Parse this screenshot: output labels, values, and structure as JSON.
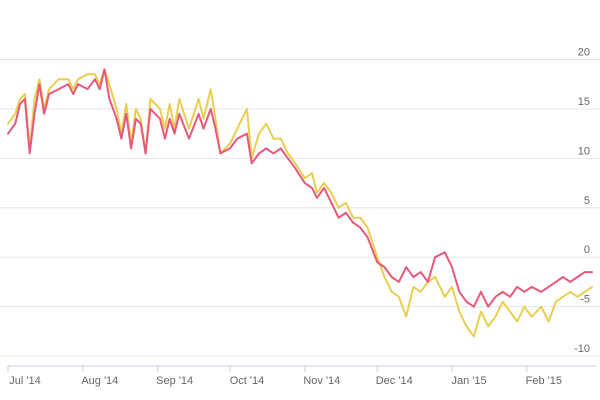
{
  "chart_data": {
    "type": "line",
    "title": "",
    "xlabel": "",
    "ylabel": "",
    "x_start": "2014-07-01",
    "x_end": "2015-02-28",
    "ylim": [
      -11,
      25
    ],
    "y_ticks": [
      20,
      15,
      10,
      5,
      0,
      -5,
      -10
    ],
    "y_tick_labels": [
      "20",
      "15",
      "10",
      "5",
      "0",
      "-5",
      "-10"
    ],
    "x_ticks": [
      {
        "date": "2014-07-01",
        "label": "Jul '14"
      },
      {
        "date": "2014-08-01",
        "label": "Aug '14"
      },
      {
        "date": "2014-09-01",
        "label": "Sep '14"
      },
      {
        "date": "2014-10-01",
        "label": "Oct '14"
      },
      {
        "date": "2014-11-01",
        "label": "Nov '14"
      },
      {
        "date": "2014-12-01",
        "label": "Dec '14"
      },
      {
        "date": "2015-01-01",
        "label": "Jan '15"
      },
      {
        "date": "2015-02-01",
        "label": "Feb '15"
      }
    ],
    "grid": true,
    "legend": "none",
    "series": [
      {
        "color": "#e8587a",
        "points": [
          [
            "2014-07-01",
            12.5
          ],
          [
            "2014-07-04",
            13.5
          ],
          [
            "2014-07-06",
            15.5
          ],
          [
            "2014-07-08",
            16.0
          ],
          [
            "2014-07-10",
            10.5
          ],
          [
            "2014-07-12",
            14.5
          ],
          [
            "2014-07-14",
            17.5
          ],
          [
            "2014-07-16",
            14.5
          ],
          [
            "2014-07-18",
            16.5
          ],
          [
            "2014-07-22",
            17.0
          ],
          [
            "2014-07-26",
            17.5
          ],
          [
            "2014-07-28",
            16.5
          ],
          [
            "2014-07-30",
            17.5
          ],
          [
            "2014-08-03",
            17.0
          ],
          [
            "2014-08-06",
            18.0
          ],
          [
            "2014-08-08",
            17.0
          ],
          [
            "2014-08-10",
            19.0
          ],
          [
            "2014-08-12",
            16.0
          ],
          [
            "2014-08-15",
            14.0
          ],
          [
            "2014-08-17",
            12.0
          ],
          [
            "2014-08-19",
            14.5
          ],
          [
            "2014-08-21",
            11.0
          ],
          [
            "2014-08-23",
            14.0
          ],
          [
            "2014-08-25",
            13.5
          ],
          [
            "2014-08-27",
            10.5
          ],
          [
            "2014-08-29",
            15.0
          ],
          [
            "2014-09-02",
            14.0
          ],
          [
            "2014-09-04",
            12.0
          ],
          [
            "2014-09-06",
            14.0
          ],
          [
            "2014-09-08",
            12.5
          ],
          [
            "2014-09-10",
            14.5
          ],
          [
            "2014-09-14",
            12.0
          ],
          [
            "2014-09-18",
            14.5
          ],
          [
            "2014-09-20",
            13.0
          ],
          [
            "2014-09-23",
            15.0
          ],
          [
            "2014-09-25",
            13.0
          ],
          [
            "2014-09-27",
            10.5
          ],
          [
            "2014-10-01",
            11.0
          ],
          [
            "2014-10-04",
            12.0
          ],
          [
            "2014-10-08",
            12.5
          ],
          [
            "2014-10-10",
            9.5
          ],
          [
            "2014-10-13",
            10.5
          ],
          [
            "2014-10-16",
            11.0
          ],
          [
            "2014-10-19",
            10.5
          ],
          [
            "2014-10-22",
            11.0
          ],
          [
            "2014-10-25",
            10.0
          ],
          [
            "2014-10-28",
            9.0
          ],
          [
            "2014-11-01",
            7.5
          ],
          [
            "2014-11-04",
            7.0
          ],
          [
            "2014-11-06",
            6.0
          ],
          [
            "2014-11-09",
            7.0
          ],
          [
            "2014-11-12",
            5.5
          ],
          [
            "2014-11-15",
            4.0
          ],
          [
            "2014-11-18",
            4.5
          ],
          [
            "2014-11-21",
            3.5
          ],
          [
            "2014-11-24",
            3.0
          ],
          [
            "2014-11-27",
            2.0
          ],
          [
            "2014-12-01",
            -0.5
          ],
          [
            "2014-12-04",
            -1.0
          ],
          [
            "2014-12-07",
            -2.0
          ],
          [
            "2014-12-10",
            -2.5
          ],
          [
            "2014-12-13",
            -1.0
          ],
          [
            "2014-12-16",
            -2.0
          ],
          [
            "2014-12-19",
            -1.5
          ],
          [
            "2014-12-22",
            -2.5
          ],
          [
            "2014-12-25",
            0.0
          ],
          [
            "2014-12-29",
            0.5
          ],
          [
            "2015-01-01",
            -1.0
          ],
          [
            "2015-01-04",
            -3.5
          ],
          [
            "2015-01-07",
            -4.5
          ],
          [
            "2015-01-10",
            -5.0
          ],
          [
            "2015-01-13",
            -3.5
          ],
          [
            "2015-01-16",
            -5.0
          ],
          [
            "2015-01-19",
            -4.0
          ],
          [
            "2015-01-22",
            -3.5
          ],
          [
            "2015-01-25",
            -4.0
          ],
          [
            "2015-01-28",
            -3.0
          ],
          [
            "2015-01-31",
            -3.5
          ],
          [
            "2015-02-03",
            -3.0
          ],
          [
            "2015-02-07",
            -3.5
          ],
          [
            "2015-02-10",
            -3.0
          ],
          [
            "2015-02-13",
            -2.5
          ],
          [
            "2015-02-16",
            -2.0
          ],
          [
            "2015-02-19",
            -2.5
          ],
          [
            "2015-02-22",
            -2.0
          ],
          [
            "2015-02-25",
            -1.5
          ],
          [
            "2015-02-28",
            -1.5
          ]
        ]
      },
      {
        "color": "#e8cf50",
        "points": [
          [
            "2014-07-01",
            13.5
          ],
          [
            "2014-07-04",
            14.5
          ],
          [
            "2014-07-06",
            16.0
          ],
          [
            "2014-07-08",
            16.5
          ],
          [
            "2014-07-10",
            11.0
          ],
          [
            "2014-07-12",
            16.0
          ],
          [
            "2014-07-14",
            18.0
          ],
          [
            "2014-07-16",
            15.0
          ],
          [
            "2014-07-18",
            17.0
          ],
          [
            "2014-07-22",
            18.0
          ],
          [
            "2014-07-26",
            18.0
          ],
          [
            "2014-07-28",
            17.0
          ],
          [
            "2014-07-30",
            18.0
          ],
          [
            "2014-08-03",
            18.5
          ],
          [
            "2014-08-06",
            18.5
          ],
          [
            "2014-08-08",
            17.5
          ],
          [
            "2014-08-10",
            19.0
          ],
          [
            "2014-08-12",
            17.5
          ],
          [
            "2014-08-15",
            15.0
          ],
          [
            "2014-08-17",
            12.5
          ],
          [
            "2014-08-19",
            15.5
          ],
          [
            "2014-08-21",
            11.5
          ],
          [
            "2014-08-23",
            15.0
          ],
          [
            "2014-08-25",
            14.0
          ],
          [
            "2014-08-27",
            10.5
          ],
          [
            "2014-08-29",
            16.0
          ],
          [
            "2014-09-02",
            15.0
          ],
          [
            "2014-09-04",
            13.0
          ],
          [
            "2014-09-06",
            15.5
          ],
          [
            "2014-09-08",
            13.0
          ],
          [
            "2014-09-10",
            16.0
          ],
          [
            "2014-09-14",
            13.0
          ],
          [
            "2014-09-18",
            16.0
          ],
          [
            "2014-09-20",
            14.0
          ],
          [
            "2014-09-23",
            17.0
          ],
          [
            "2014-09-25",
            14.0
          ],
          [
            "2014-09-27",
            10.5
          ],
          [
            "2014-10-01",
            11.5
          ],
          [
            "2014-10-04",
            13.0
          ],
          [
            "2014-10-08",
            15.0
          ],
          [
            "2014-10-10",
            10.0
          ],
          [
            "2014-10-13",
            12.5
          ],
          [
            "2014-10-16",
            13.5
          ],
          [
            "2014-10-19",
            12.0
          ],
          [
            "2014-10-22",
            12.0
          ],
          [
            "2014-10-25",
            10.5
          ],
          [
            "2014-10-28",
            9.5
          ],
          [
            "2014-11-01",
            8.0
          ],
          [
            "2014-11-04",
            8.5
          ],
          [
            "2014-11-06",
            6.5
          ],
          [
            "2014-11-09",
            7.5
          ],
          [
            "2014-11-12",
            6.5
          ],
          [
            "2014-11-15",
            5.0
          ],
          [
            "2014-11-18",
            5.5
          ],
          [
            "2014-11-21",
            4.0
          ],
          [
            "2014-11-24",
            4.0
          ],
          [
            "2014-11-27",
            3.0
          ],
          [
            "2014-12-01",
            0.0
          ],
          [
            "2014-12-04",
            -2.0
          ],
          [
            "2014-12-07",
            -3.5
          ],
          [
            "2014-12-10",
            -4.0
          ],
          [
            "2014-12-13",
            -6.0
          ],
          [
            "2014-12-16",
            -3.0
          ],
          [
            "2014-12-19",
            -3.5
          ],
          [
            "2014-12-22",
            -2.5
          ],
          [
            "2014-12-25",
            -2.0
          ],
          [
            "2014-12-29",
            -4.0
          ],
          [
            "2015-01-01",
            -3.0
          ],
          [
            "2015-01-04",
            -5.5
          ],
          [
            "2015-01-07",
            -7.0
          ],
          [
            "2015-01-10",
            -8.0
          ],
          [
            "2015-01-13",
            -5.5
          ],
          [
            "2015-01-16",
            -7.0
          ],
          [
            "2015-01-19",
            -6.0
          ],
          [
            "2015-01-22",
            -4.5
          ],
          [
            "2015-01-25",
            -5.5
          ],
          [
            "2015-01-28",
            -6.5
          ],
          [
            "2015-01-31",
            -5.0
          ],
          [
            "2015-02-03",
            -6.0
          ],
          [
            "2015-02-07",
            -5.0
          ],
          [
            "2015-02-10",
            -6.5
          ],
          [
            "2015-02-13",
            -4.5
          ],
          [
            "2015-02-16",
            -4.0
          ],
          [
            "2015-02-19",
            -3.5
          ],
          [
            "2015-02-22",
            -4.0
          ],
          [
            "2015-02-25",
            -3.5
          ],
          [
            "2015-02-28",
            -3.0
          ]
        ]
      }
    ]
  }
}
